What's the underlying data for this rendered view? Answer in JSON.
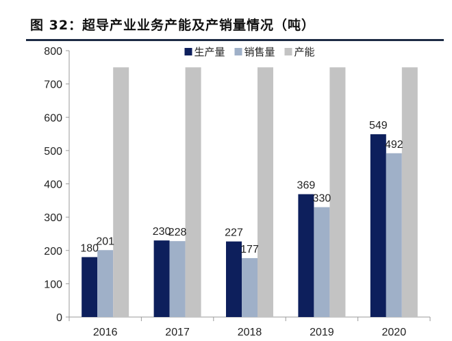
{
  "figure": {
    "title": "图 32：超导产业业务产能及产销量情况（吨）"
  },
  "chart_data": {
    "type": "bar",
    "categories": [
      "2016",
      "2017",
      "2018",
      "2019",
      "2020"
    ],
    "series": [
      {
        "name": "生产量",
        "values": [
          180,
          230,
          227,
          369,
          549
        ],
        "color": "#0d1f5c"
      },
      {
        "name": "销售量",
        "values": [
          201,
          228,
          177,
          330,
          492
        ],
        "color": "#9fb0c8"
      },
      {
        "name": "产能",
        "values": [
          750,
          750,
          750,
          750,
          750
        ],
        "color": "#c3c3c3"
      }
    ],
    "data_labels": [
      {
        "series": 0,
        "values": [
          "180",
          "230",
          "227",
          "369",
          "549"
        ]
      },
      {
        "series": 1,
        "values": [
          "201",
          "228",
          "177",
          "330",
          "492"
        ]
      }
    ],
    "ylim": [
      0,
      800
    ],
    "yticks": [
      0,
      100,
      200,
      300,
      400,
      500,
      600,
      700,
      800
    ],
    "legend": "top-center",
    "grid": false,
    "xlabel": "",
    "ylabel": ""
  }
}
